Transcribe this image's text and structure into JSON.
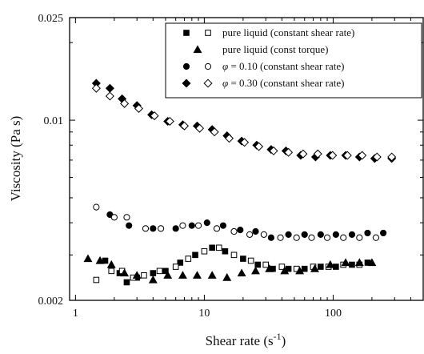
{
  "chart_data": {
    "type": "scatter",
    "x_scale": "log",
    "y_scale": "log",
    "xlabel": "Shear rate (s",
    "xlabel_sup": "-1",
    "xlabel_end": ")",
    "ylabel": "Viscosity (Pa s)",
    "xlim": [
      0.9,
      500
    ],
    "ylim": [
      0.002,
      0.025
    ],
    "x_ticks": [
      {
        "value": 1,
        "label": "1"
      },
      {
        "value": 10,
        "label": "10"
      },
      {
        "value": 100,
        "label": "100"
      }
    ],
    "y_ticks": [
      {
        "value": 0.002,
        "label": "0.002"
      },
      {
        "value": 0.01,
        "label": "0.01"
      },
      {
        "value": 0.025,
        "label": "0.025"
      }
    ],
    "legend_position": "top-right",
    "legend": [
      {
        "markers": [
          "square-filled",
          "square-open"
        ],
        "prefix": "",
        "text": "pure liquid (constant shear rate)"
      },
      {
        "markers": [
          "triangle-filled"
        ],
        "prefix": "",
        "text": "pure liquid (const torque)"
      },
      {
        "markers": [
          "circle-filled",
          "circle-open"
        ],
        "prefix": "φ",
        "text": " = 0.10 (constant shear rate)"
      },
      {
        "markers": [
          "diamond-filled",
          "diamond-open"
        ],
        "prefix": "φ",
        "text": " = 0.30 (constant shear rate)"
      }
    ],
    "series": [
      {
        "marker": "square-filled",
        "points": [
          [
            1.7,
            0.00285
          ],
          [
            2.2,
            0.00255
          ],
          [
            2.5,
            0.00235
          ],
          [
            3.0,
            0.00245
          ],
          [
            4.0,
            0.00255
          ],
          [
            5.0,
            0.0026
          ],
          [
            6.5,
            0.0028
          ],
          [
            8.5,
            0.003
          ],
          [
            11.5,
            0.0032
          ],
          [
            14.5,
            0.0031
          ],
          [
            20,
            0.0029
          ],
          [
            26,
            0.00275
          ],
          [
            34,
            0.00265
          ],
          [
            45,
            0.00265
          ],
          [
            60,
            0.00265
          ],
          [
            80,
            0.0027
          ],
          [
            105,
            0.0027
          ],
          [
            140,
            0.00275
          ],
          [
            185,
            0.0028
          ]
        ]
      },
      {
        "marker": "square-open",
        "points": [
          [
            1.45,
            0.0024
          ],
          [
            1.9,
            0.0026
          ],
          [
            2.3,
            0.0026
          ],
          [
            2.8,
            0.00245
          ],
          [
            3.4,
            0.0025
          ],
          [
            4.5,
            0.0026
          ],
          [
            6.0,
            0.0027
          ],
          [
            7.5,
            0.0029
          ],
          [
            10,
            0.0031
          ],
          [
            13,
            0.0032
          ],
          [
            17,
            0.003
          ],
          [
            23,
            0.00285
          ],
          [
            30,
            0.00275
          ],
          [
            40,
            0.0027
          ],
          [
            52,
            0.00265
          ],
          [
            70,
            0.0027
          ],
          [
            92,
            0.0027
          ],
          [
            120,
            0.00275
          ],
          [
            160,
            0.00275
          ]
        ]
      },
      {
        "marker": "triangle-filled",
        "points": [
          [
            1.25,
            0.0029
          ],
          [
            1.55,
            0.00285
          ],
          [
            1.9,
            0.00275
          ],
          [
            2.4,
            0.00255
          ],
          [
            3.0,
            0.0025
          ],
          [
            4.0,
            0.0024
          ],
          [
            5.2,
            0.0025
          ],
          [
            6.8,
            0.0025
          ],
          [
            8.8,
            0.0025
          ],
          [
            11.5,
            0.0025
          ],
          [
            15,
            0.00245
          ],
          [
            19.5,
            0.00255
          ],
          [
            25,
            0.0026
          ],
          [
            32,
            0.00265
          ],
          [
            42,
            0.0026
          ],
          [
            55,
            0.0026
          ],
          [
            72,
            0.00265
          ],
          [
            95,
            0.00275
          ],
          [
            125,
            0.0028
          ],
          [
            160,
            0.0028
          ],
          [
            200,
            0.0028
          ]
        ]
      },
      {
        "marker": "circle-filled",
        "points": [
          [
            1.85,
            0.0043
          ],
          [
            2.6,
            0.0039
          ],
          [
            4.0,
            0.0038
          ],
          [
            6.0,
            0.0038
          ],
          [
            8.0,
            0.0039
          ],
          [
            10.5,
            0.004
          ],
          [
            14,
            0.0039
          ],
          [
            19,
            0.00375
          ],
          [
            25,
            0.0037
          ],
          [
            33,
            0.0035
          ],
          [
            45,
            0.0036
          ],
          [
            60,
            0.0036
          ],
          [
            80,
            0.0036
          ],
          [
            105,
            0.0036
          ],
          [
            140,
            0.0036
          ],
          [
            185,
            0.00365
          ],
          [
            245,
            0.00365
          ]
        ]
      },
      {
        "marker": "circle-open",
        "points": [
          [
            1.45,
            0.0046
          ],
          [
            2.0,
            0.0042
          ],
          [
            2.5,
            0.0042
          ],
          [
            3.5,
            0.0038
          ],
          [
            4.6,
            0.0038
          ],
          [
            6.8,
            0.0039
          ],
          [
            9.0,
            0.0039
          ],
          [
            12.5,
            0.0038
          ],
          [
            17,
            0.0037
          ],
          [
            22.5,
            0.0036
          ],
          [
            29,
            0.0036
          ],
          [
            39,
            0.0035
          ],
          [
            52,
            0.0035
          ],
          [
            68,
            0.0035
          ],
          [
            90,
            0.0035
          ],
          [
            120,
            0.0035
          ],
          [
            160,
            0.0035
          ],
          [
            215,
            0.0035
          ]
        ]
      },
      {
        "marker": "diamond-filled",
        "points": [
          [
            1.45,
            0.0139
          ],
          [
            1.85,
            0.0133
          ],
          [
            2.3,
            0.0121
          ],
          [
            3.0,
            0.0114
          ],
          [
            3.9,
            0.0105
          ],
          [
            5.2,
            0.0099
          ],
          [
            6.8,
            0.0096
          ],
          [
            8.8,
            0.0095
          ],
          [
            11.5,
            0.0092
          ],
          [
            15,
            0.0087
          ],
          [
            19.5,
            0.0083
          ],
          [
            25.5,
            0.008
          ],
          [
            33,
            0.0077
          ],
          [
            43,
            0.0076
          ],
          [
            56,
            0.0073
          ],
          [
            73,
            0.0072
          ],
          [
            95,
            0.0073
          ],
          [
            125,
            0.0073
          ],
          [
            160,
            0.0072
          ],
          [
            210,
            0.0071
          ],
          [
            285,
            0.0071
          ]
        ]
      },
      {
        "marker": "diamond-open",
        "points": [
          [
            1.45,
            0.0133
          ],
          [
            1.85,
            0.0124
          ],
          [
            2.4,
            0.0116
          ],
          [
            3.1,
            0.0111
          ],
          [
            4.1,
            0.0104
          ],
          [
            5.4,
            0.0099
          ],
          [
            7.0,
            0.0095
          ],
          [
            9.2,
            0.0093
          ],
          [
            12,
            0.009
          ],
          [
            15.6,
            0.0085
          ],
          [
            20.5,
            0.0082
          ],
          [
            26.5,
            0.0079
          ],
          [
            34.5,
            0.0076
          ],
          [
            45,
            0.0075
          ],
          [
            58.5,
            0.0074
          ],
          [
            76,
            0.0074
          ],
          [
            99,
            0.0073
          ],
          [
            129,
            0.0073
          ],
          [
            168,
            0.0073
          ],
          [
            219,
            0.0072
          ],
          [
            285,
            0.0072
          ]
        ]
      }
    ]
  }
}
